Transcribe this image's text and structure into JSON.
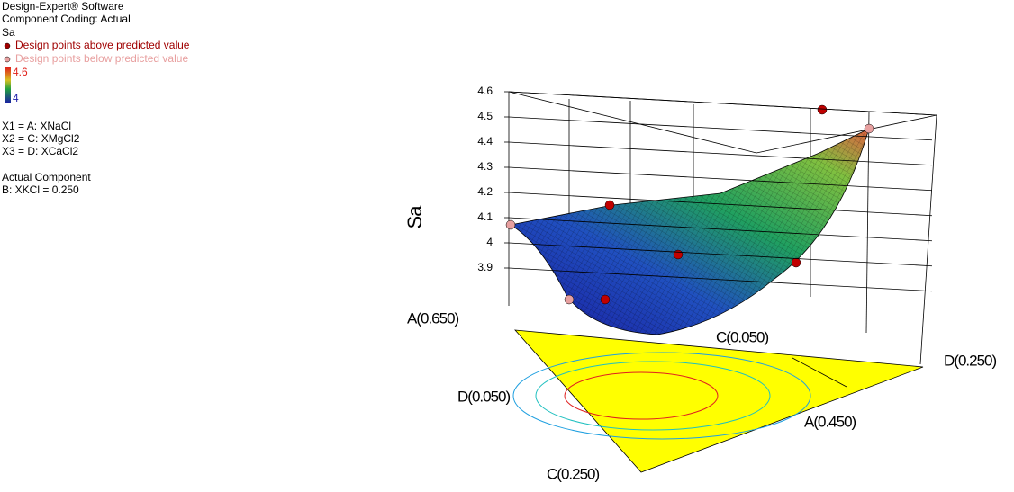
{
  "header": {
    "software": "Design-Expert® Software",
    "coding": "Component Coding: Actual",
    "response": "Sa"
  },
  "legend": {
    "above": "Design points above predicted value",
    "below": "Design points below predicted value",
    "high": 4.6,
    "low": 4,
    "high_color": "#e0201b",
    "low_color": "#1a1aa8",
    "above_color": "#a00000",
    "below_color": "#e8a0a0"
  },
  "factors": [
    "X1 = A: XNaCl",
    "X2 = C: XMgCl2",
    "X3 = D: XCaCl2"
  ],
  "actual": {
    "title": "Actual Component",
    "value": "B: XKCl = 0.250"
  },
  "chart_data": {
    "type": "surface",
    "zlabel": "Sa",
    "zlim": [
      3.9,
      4.6
    ],
    "zticks": [
      3.9,
      4,
      4.1,
      4.2,
      4.3,
      4.4,
      4.5,
      4.6
    ],
    "grid": true,
    "corner_labels": [
      "A(0.650)",
      "C(0.050)",
      "D(0.250)",
      "D(0.050)",
      "A(0.450)",
      "C(0.250)"
    ]
  }
}
